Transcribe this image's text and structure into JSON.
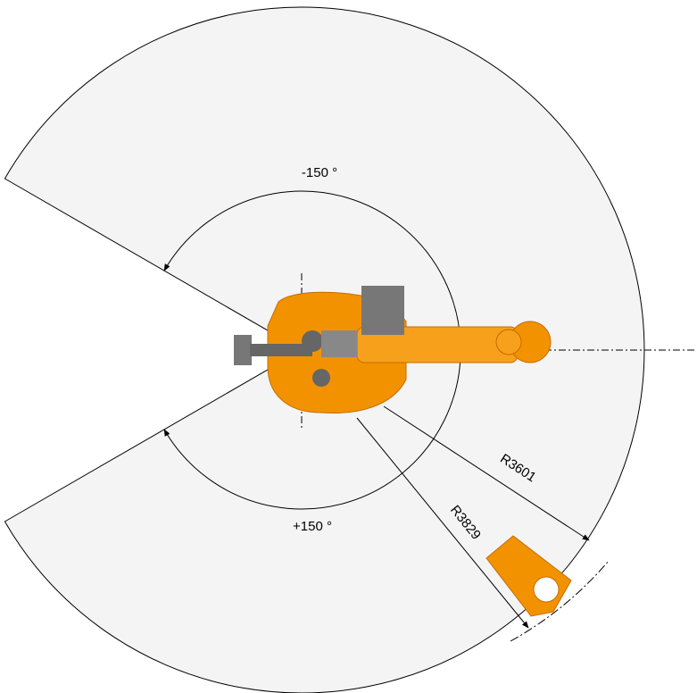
{
  "angles": {
    "negative": "-150 °",
    "positive": "+150 °"
  },
  "radii": {
    "reach": "R3601",
    "max_reach": "R3829"
  }
}
